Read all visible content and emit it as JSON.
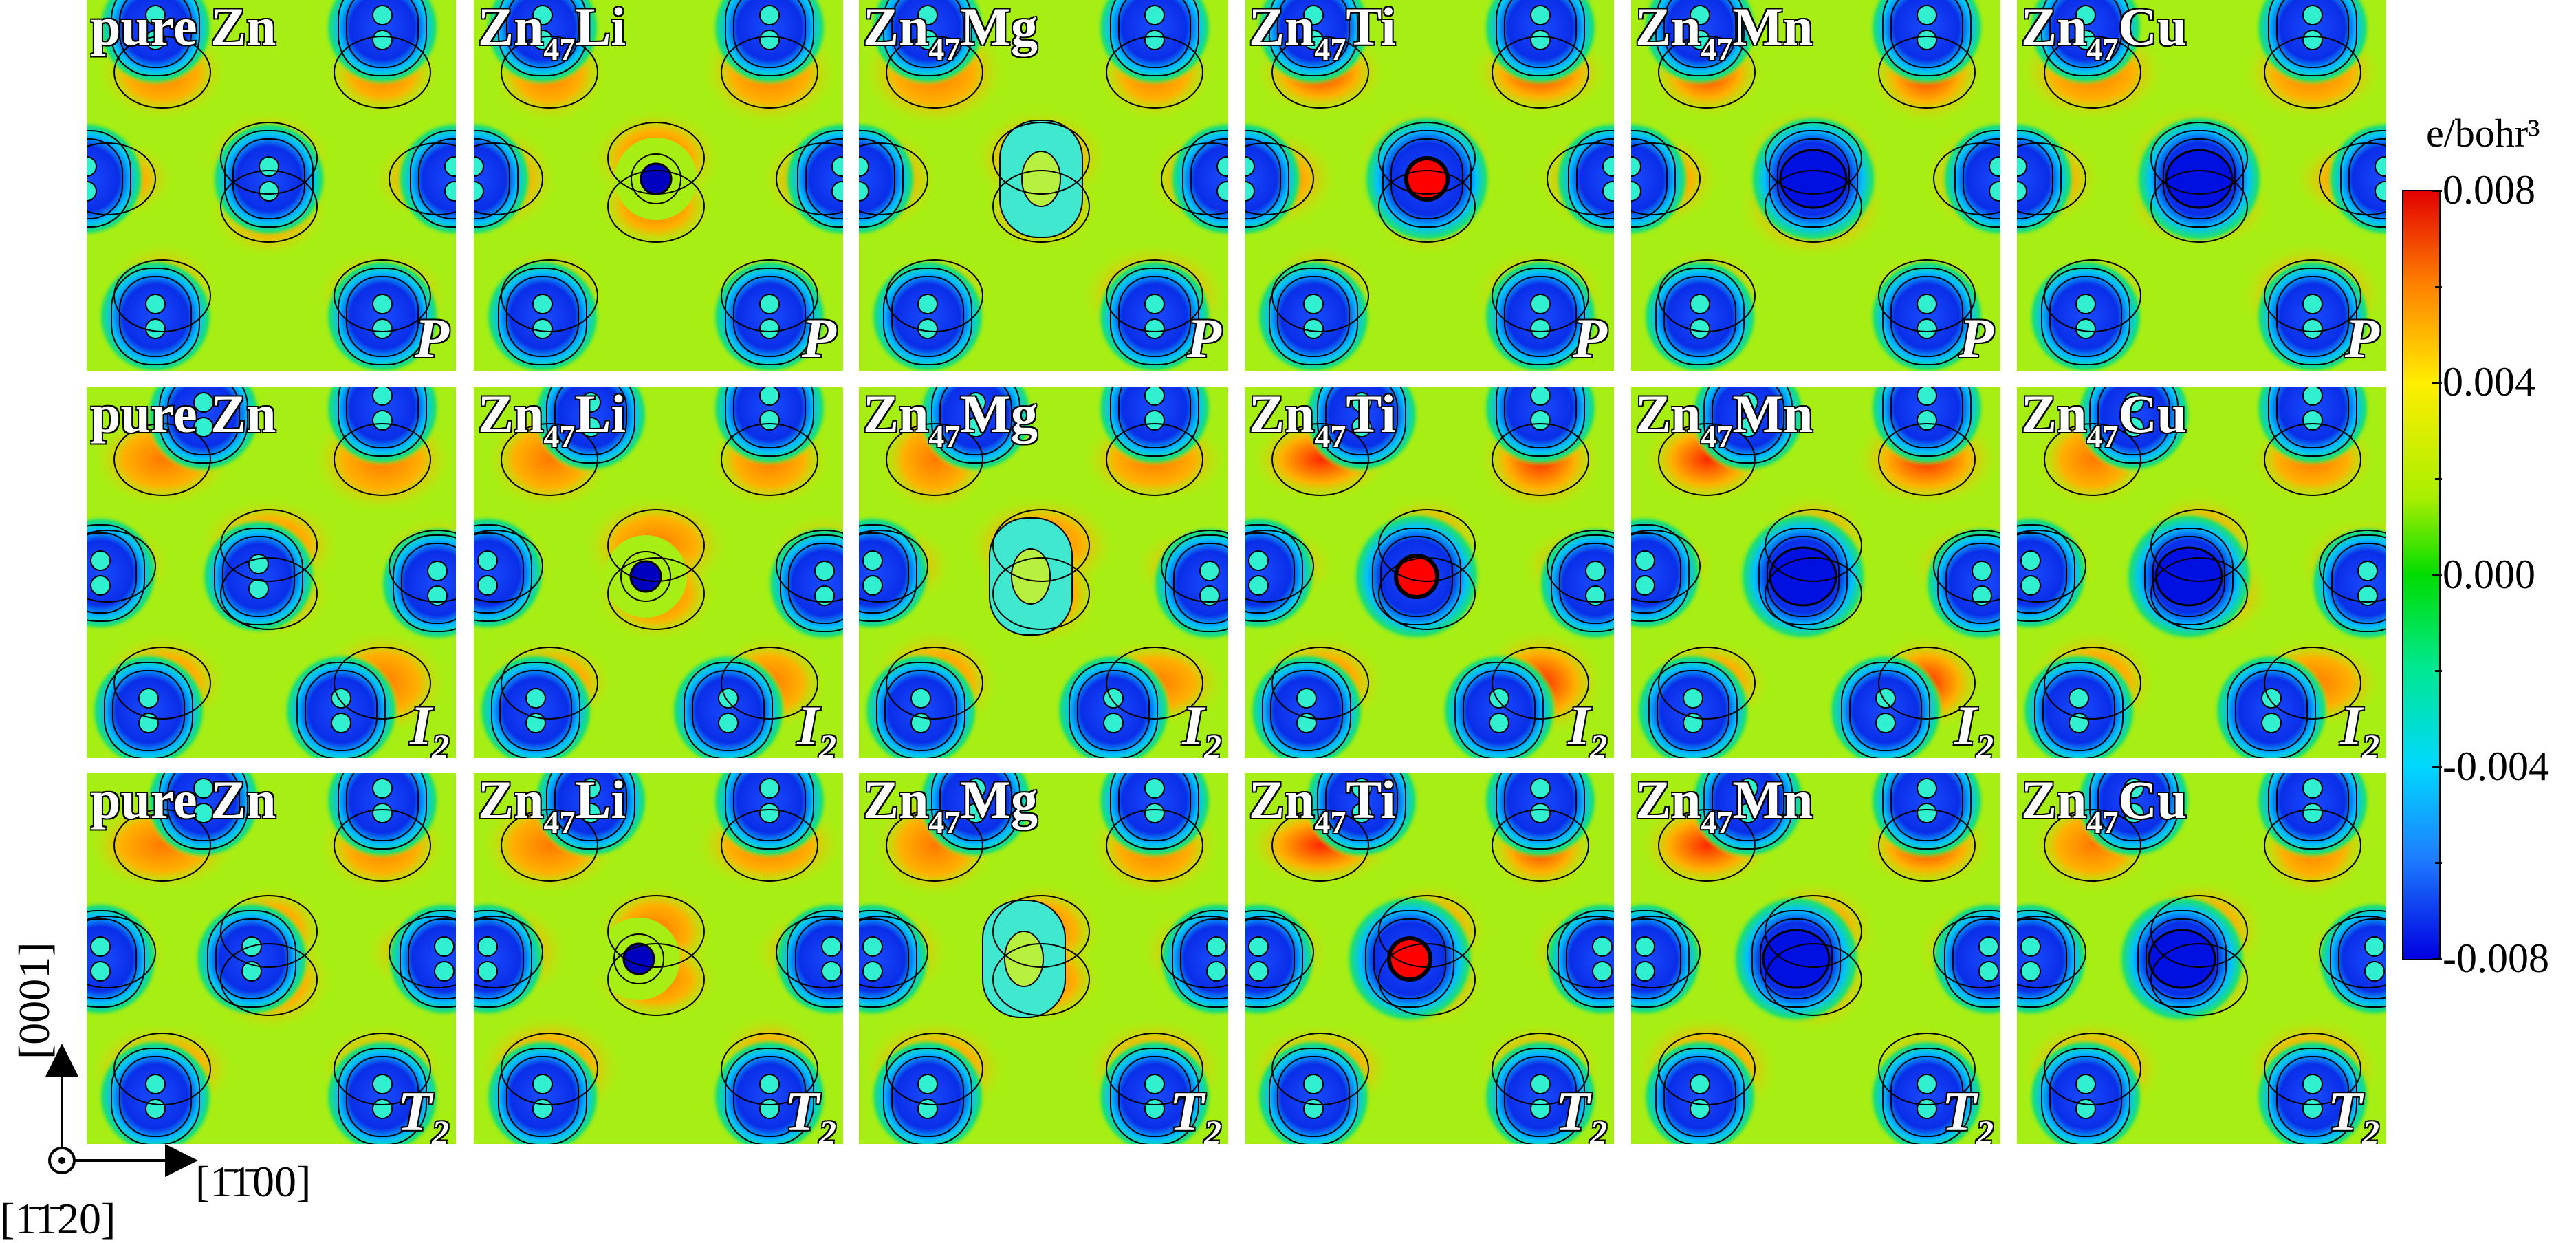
{
  "figure": {
    "rows": [
      {
        "site": "P",
        "site_sub": ""
      },
      {
        "site": "I",
        "site_sub": "2"
      },
      {
        "site": "T",
        "site_sub": "2"
      }
    ],
    "columns": [
      {
        "prefix": "pure Zn",
        "sub": "",
        "element": ""
      },
      {
        "prefix": "Zn",
        "sub": "47",
        "element": "Li"
      },
      {
        "prefix": "Zn",
        "sub": "47",
        "element": "Mg"
      },
      {
        "prefix": "Zn",
        "sub": "47",
        "element": "Ti"
      },
      {
        "prefix": "Zn",
        "sub": "47",
        "element": "Mn"
      },
      {
        "prefix": "Zn",
        "sub": "47",
        "element": "Cu"
      }
    ]
  },
  "colorbar": {
    "unit": "e/bohr³",
    "ticks": [
      "0.008",
      "0.004",
      "0.000",
      "-0.004",
      "-0.008"
    ],
    "colors": {
      "max": "#e30000",
      "zero": "#00dd00",
      "min": "#0000e0"
    }
  },
  "axes": {
    "vertical": "[0001]",
    "horizontal": "[1̄1̄00]",
    "normal": "[1̄1̄20]"
  }
}
